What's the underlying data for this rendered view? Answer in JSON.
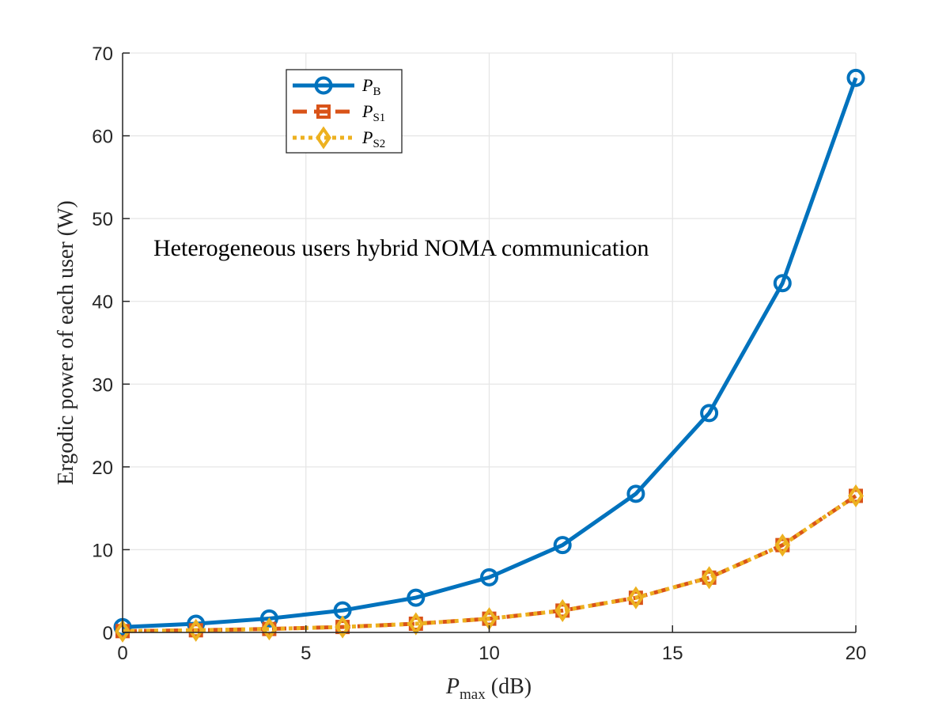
{
  "chart_data": {
    "type": "line",
    "title": "",
    "xlabel_main": "P",
    "xlabel_sub": "max",
    "xlabel_unit": " (dB)",
    "ylabel": "Ergodic power of each user (W)",
    "annotation": "Heterogeneous users hybrid NOMA communication",
    "xlim": [
      0,
      20
    ],
    "ylim": [
      0,
      70
    ],
    "xticks": [
      0,
      5,
      10,
      15,
      20
    ],
    "yticks": [
      0,
      10,
      20,
      30,
      40,
      50,
      60,
      70
    ],
    "grid": true,
    "legend_position": "top-left",
    "x": [
      0,
      2,
      4,
      6,
      8,
      10,
      12,
      14,
      16,
      18,
      20
    ],
    "series": [
      {
        "name": "P_B",
        "label_main": "P",
        "label_sub": "B",
        "color": "#0072BD",
        "line_style": "solid",
        "marker": "circle",
        "values": [
          0.65,
          1.05,
          1.68,
          2.66,
          4.2,
          6.66,
          10.55,
          16.75,
          26.5,
          42.2,
          67.0
        ]
      },
      {
        "name": "P_S1",
        "label_main": "P",
        "label_sub": "S1",
        "color": "#D95319",
        "line_style": "dashed",
        "marker": "square",
        "values": [
          0.16,
          0.26,
          0.42,
          0.66,
          1.05,
          1.66,
          2.64,
          4.19,
          6.62,
          10.55,
          16.5
        ]
      },
      {
        "name": "P_S2",
        "label_main": "P",
        "label_sub": "S2",
        "color": "#EDB120",
        "line_style": "dotted",
        "marker": "diamond",
        "values": [
          0.16,
          0.26,
          0.42,
          0.66,
          1.05,
          1.66,
          2.64,
          4.19,
          6.62,
          10.55,
          16.5
        ]
      }
    ]
  }
}
